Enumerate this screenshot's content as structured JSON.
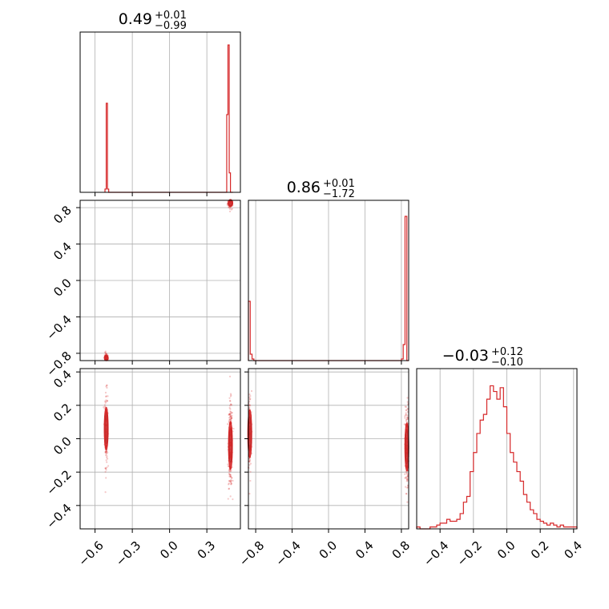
{
  "chart_data": {
    "type": "corner",
    "color": "#d62728",
    "grid": true,
    "parameters": [
      {
        "title": {
          "median": "0.49",
          "plus": "+0.01",
          "minus": "−0.99"
        },
        "range": [
          -0.72,
          0.57
        ],
        "ticks": [
          -0.6,
          -0.3,
          0.0,
          0.3
        ],
        "tick_labels": [
          "−0.6",
          "−0.3",
          "0.0",
          "0.3"
        ],
        "histogram": {
          "edges": [
            -0.52,
            -0.51,
            -0.5,
            -0.49,
            -0.48,
            0.46,
            0.47,
            0.48,
            0.49,
            0.5,
            0.51
          ],
          "counts": [
            0.02,
            0.55,
            0.02,
            0.0,
            0.0,
            0.48,
            0.91,
            0.12,
            0.0,
            0.0
          ],
          "ymax": 0.99
        }
      },
      {
        "title": {
          "median": "0.86",
          "plus": "+0.01",
          "minus": "−1.72"
        },
        "range": [
          -0.88,
          0.88
        ],
        "ticks": [
          -0.8,
          -0.4,
          0.0,
          0.4,
          0.8
        ],
        "tick_labels": [
          "−0.8",
          "−0.4",
          "0.0",
          "0.4",
          "0.8"
        ],
        "histogram": {
          "edges": [
            -0.88,
            -0.86,
            -0.84,
            -0.82,
            -0.8,
            0.8,
            0.82,
            0.84,
            0.86,
            0.88
          ],
          "counts": [
            0.37,
            0.04,
            0.01,
            0.0,
            0.0,
            0.01,
            0.1,
            0.9,
            0.0
          ],
          "ymax": 1.0
        }
      },
      {
        "title": {
          "median": "−0.03",
          "plus": "+0.12",
          "minus": "−0.10"
        },
        "range": [
          -0.54,
          0.42
        ],
        "ticks": [
          -0.4,
          -0.2,
          0.0,
          0.2,
          0.4
        ],
        "tick_labels": [
          "−0.4",
          "−0.2",
          "0.0",
          "0.2",
          "0.4"
        ],
        "histogram": {
          "edges": [
            -0.54,
            -0.52,
            -0.5,
            -0.48,
            -0.46,
            -0.44,
            -0.42,
            -0.4,
            -0.38,
            -0.36,
            -0.34,
            -0.32,
            -0.3,
            -0.28,
            -0.26,
            -0.24,
            -0.22,
            -0.2,
            -0.18,
            -0.16,
            -0.14,
            -0.12,
            -0.1,
            -0.08,
            -0.06,
            -0.04,
            -0.02,
            0.0,
            0.02,
            0.04,
            0.06,
            0.08,
            0.1,
            0.12,
            0.14,
            0.16,
            0.18,
            0.2,
            0.22,
            0.24,
            0.26,
            0.28,
            0.3,
            0.32,
            0.34,
            0.36,
            0.38,
            0.4,
            0.42
          ],
          "counts": [
            0.01,
            0.0,
            0.0,
            0.0,
            0.01,
            0.01,
            0.02,
            0.03,
            0.03,
            0.05,
            0.04,
            0.04,
            0.05,
            0.08,
            0.14,
            0.17,
            0.3,
            0.4,
            0.5,
            0.57,
            0.6,
            0.68,
            0.75,
            0.72,
            0.68,
            0.74,
            0.64,
            0.5,
            0.4,
            0.35,
            0.3,
            0.25,
            0.18,
            0.14,
            0.1,
            0.08,
            0.05,
            0.04,
            0.03,
            0.02,
            0.03,
            0.02,
            0.01,
            0.02,
            0.01,
            0.01,
            0.01,
            0.01
          ],
          "ymax": 0.84
        }
      }
    ],
    "scatter_panels": [
      {
        "x_param": 0,
        "y_param": 1,
        "clusters": [
          {
            "center": [
              0.49,
              0.85
            ],
            "spread": [
              0.012,
              0.025
            ],
            "count": 60
          },
          {
            "center": [
              -0.51,
              -0.85
            ],
            "spread": [
              0.008,
              0.02
            ],
            "count": 60
          }
        ]
      },
      {
        "x_param": 0,
        "y_param": 2,
        "clusters": [
          {
            "center": [
              -0.51,
              0.06
            ],
            "spread": [
              0.006,
              0.08
            ],
            "count": 180
          },
          {
            "center": [
              0.49,
              -0.04
            ],
            "spread": [
              0.008,
              0.09
            ],
            "count": 260
          }
        ]
      },
      {
        "x_param": 1,
        "y_param": 2,
        "clusters": [
          {
            "center": [
              -0.865,
              0.03
            ],
            "spread": [
              0.01,
              0.09
            ],
            "count": 150
          },
          {
            "center": [
              0.86,
              -0.05
            ],
            "spread": [
              0.01,
              0.09
            ],
            "count": 230
          }
        ]
      }
    ]
  }
}
